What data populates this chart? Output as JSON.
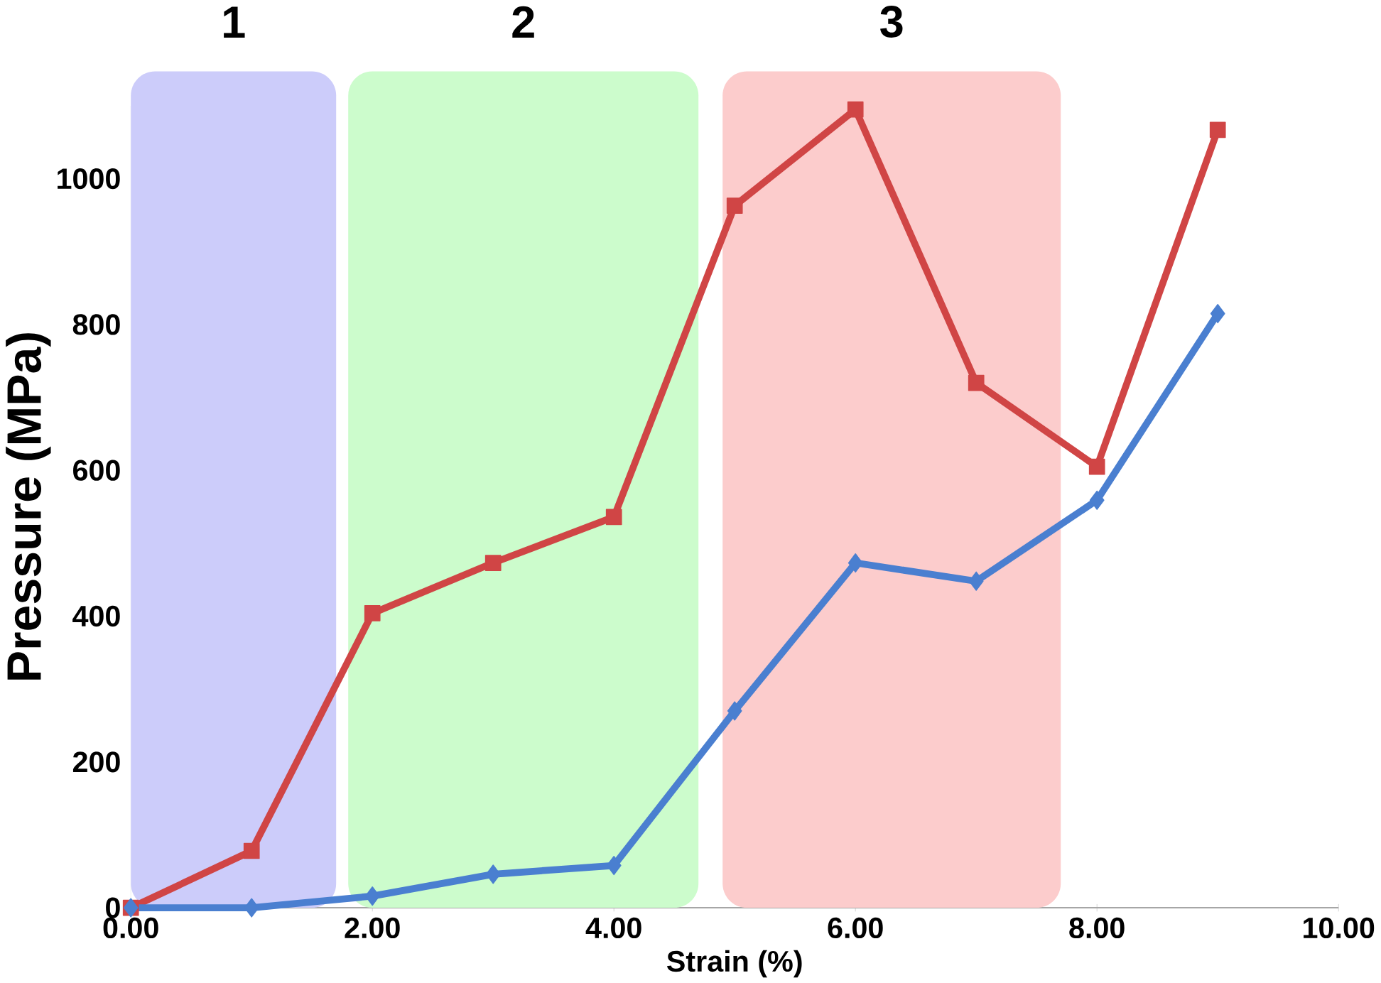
{
  "chart_data": {
    "type": "line",
    "xlabel": "Strain (%)",
    "ylabel": "Pressure  (MPa)",
    "x": [
      0,
      1,
      2,
      3,
      4,
      5,
      6,
      7,
      8,
      9
    ],
    "series": [
      {
        "color": "#d04545",
        "marker": "square",
        "values": [
          0,
          78,
          404,
          473,
          536,
          963,
          1095,
          720,
          605,
          1067
        ]
      },
      {
        "color": "#4a7fd0",
        "marker": "diamond",
        "values": [
          0,
          0,
          16,
          46,
          58,
          270,
          473,
          448,
          559,
          815
        ]
      }
    ],
    "xlim": [
      0,
      10
    ],
    "ylim": [
      0,
      1100
    ],
    "xticks": [
      {
        "value": 0,
        "label": "0.00"
      },
      {
        "value": 2,
        "label": "2.00"
      },
      {
        "value": 4,
        "label": "4.00"
      },
      {
        "value": 6,
        "label": "6.00"
      },
      {
        "value": 8,
        "label": "8.00"
      },
      {
        "value": 10,
        "label": "10.00"
      }
    ],
    "yticks": [
      0,
      200,
      400,
      600,
      800,
      1000
    ],
    "bands": [
      {
        "axis": "x",
        "from": 0,
        "to": 1.7,
        "label": "1",
        "color": "#ccccfa"
      },
      {
        "axis": "x",
        "from": 1.8,
        "to": 4.7,
        "label": "2",
        "color": "#ccfccc"
      },
      {
        "axis": "x",
        "from": 4.9,
        "to": 7.7,
        "label": "3",
        "color": "#fccccc"
      }
    ]
  }
}
